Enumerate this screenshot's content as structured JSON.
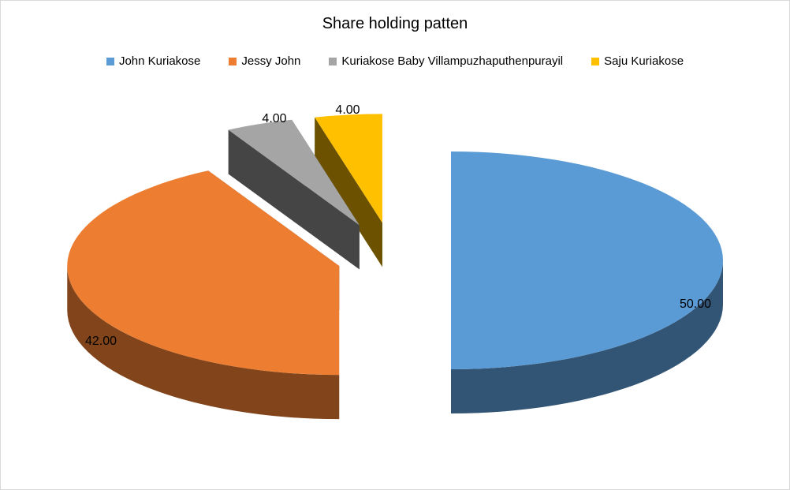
{
  "chart_data": {
    "type": "pie",
    "title": "Share holding patten",
    "legend_position": "top",
    "style": "3d-exploded",
    "series": [
      {
        "name": "John Kuriakose",
        "value": 50.0,
        "label": "50.00",
        "color": "#5B9BD5"
      },
      {
        "name": "Jessy John",
        "value": 42.0,
        "label": "42.00",
        "color": "#ED7D31"
      },
      {
        "name": "Kuriakose Baby Villampuzhaputhenpurayil",
        "value": 4.0,
        "label": "4.00",
        "color": "#A5A5A5"
      },
      {
        "name": "Saju Kuriakose",
        "value": 4.0,
        "label": "4.00",
        "color": "#FFC000"
      }
    ]
  }
}
